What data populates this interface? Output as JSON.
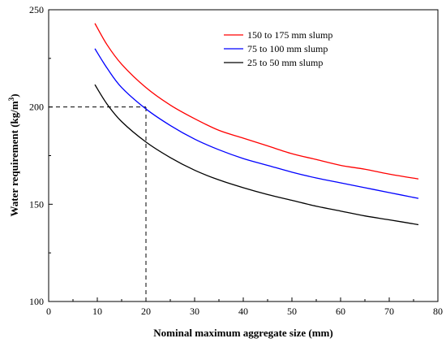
{
  "chart_data": {
    "type": "line",
    "xlabel": "Nominal maximum aggregate size (mm)",
    "ylabel_main": "Water requirement (kg/m",
    "ylabel_sup": "3",
    "ylabel_close": ")",
    "xlim": [
      0,
      80
    ],
    "ylim": [
      100,
      250
    ],
    "xticks": [
      "0",
      "10",
      "20",
      "30",
      "40",
      "50",
      "60",
      "70",
      "80"
    ],
    "yticks": [
      "100",
      "150",
      "200",
      "250"
    ],
    "grid": false,
    "legend_position": "top-right",
    "series": [
      {
        "name": "150 to 175 mm slump",
        "color": "#ff0000",
        "x": [
          9.5,
          12,
          15,
          20,
          25,
          30,
          35,
          40,
          45,
          50,
          55,
          60,
          65,
          70,
          76
        ],
        "y": [
          243,
          232,
          222,
          210,
          201,
          194,
          188,
          184,
          180,
          176,
          173,
          170,
          168,
          165.5,
          163
        ]
      },
      {
        "name": "75 to 100 mm slump",
        "color": "#0000ff",
        "x": [
          9.5,
          12,
          15,
          20,
          25,
          30,
          35,
          40,
          45,
          50,
          55,
          60,
          65,
          70,
          76
        ],
        "y": [
          230,
          220,
          210,
          199,
          190.5,
          183.5,
          178,
          173.5,
          170,
          166.5,
          163.5,
          161,
          158.5,
          156,
          153
        ]
      },
      {
        "name": "25 to 50 mm slump",
        "color": "#000000",
        "x": [
          9.5,
          12,
          15,
          20,
          25,
          30,
          35,
          40,
          45,
          50,
          55,
          60,
          65,
          70,
          76
        ],
        "y": [
          211.5,
          201.5,
          192.5,
          182,
          174,
          167.5,
          162.5,
          158.5,
          155,
          152,
          149,
          146.5,
          144,
          142,
          139.5
        ]
      }
    ],
    "reference_lines": [
      {
        "type": "horizontal",
        "y": 200,
        "x_from": 0,
        "x_to": 20
      },
      {
        "type": "vertical",
        "x": 20,
        "y_from": 100,
        "y_to": 200
      }
    ]
  }
}
